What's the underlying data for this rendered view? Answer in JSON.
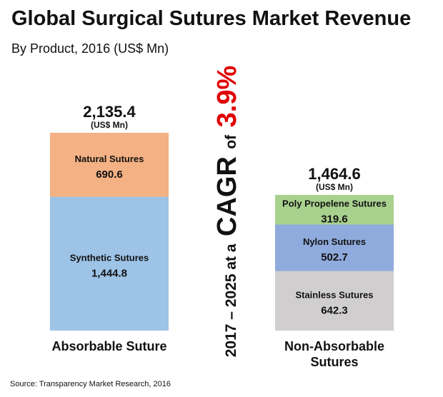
{
  "title": "Global Surgical Sutures Market Revenue",
  "subtitle": "By Product, 2016 (US$ Mn)",
  "source": "Source: Transparency Market Research, 2016",
  "cagr": {
    "prefix": "2017 – 2025 at a",
    "cagr_word": "CAGR",
    "of_word": "of",
    "value": "3.9%"
  },
  "colors": {
    "natural": "#f4b183",
    "synthetic": "#9dc3e6",
    "poly": "#a9d18e",
    "nylon": "#8faadc",
    "stainless": "#d0cece",
    "cagr_accent": "#e00000"
  },
  "chart_data": {
    "type": "bar",
    "stacked": true,
    "unit": "US$ Mn",
    "categories": [
      "Absorbable Suture",
      "Non-Absorbable Sutures"
    ],
    "totals": [
      {
        "value": "2,135.4",
        "unit": "(US$ Mn)"
      },
      {
        "value": "1,464.6",
        "unit": "(US$ Mn)"
      }
    ],
    "stacks": [
      {
        "category": "Absorbable Suture",
        "segments": [
          {
            "name": "Synthetic Sutures",
            "value": 1444.8,
            "label": "1,444.8",
            "color": "#9dc3e6"
          },
          {
            "name": "Natural Sutures",
            "value": 690.6,
            "label": "690.6",
            "color": "#f4b183"
          }
        ]
      },
      {
        "category": "Non-Absorbable Sutures",
        "segments": [
          {
            "name": "Stainless Sutures",
            "value": 642.3,
            "label": "642.3",
            "color": "#d0cece"
          },
          {
            "name": "Nylon Sutures",
            "value": 502.7,
            "label": "502.7",
            "color": "#8faadc"
          },
          {
            "name": "Poly Propelene Sutures",
            "value": 319.6,
            "label": "319.6",
            "color": "#a9d18e"
          }
        ]
      }
    ]
  }
}
